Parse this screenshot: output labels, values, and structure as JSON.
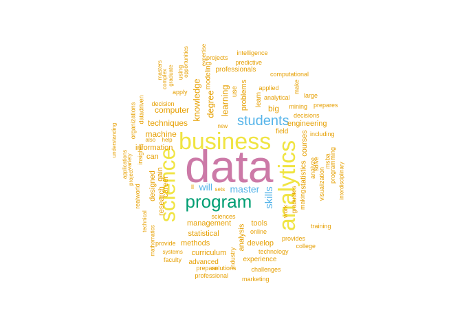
{
  "colors": {
    "orange": "#E69F00",
    "pink": "#CC79A7",
    "yellow": "#F0E442",
    "green": "#009E73",
    "blue": "#56B4E9",
    "background": "#FFFFFF"
  },
  "words": [
    {
      "text": "data",
      "color": "pink"
    },
    {
      "text": "business",
      "color": "yellow"
    },
    {
      "text": "analytics",
      "color": "yellow"
    },
    {
      "text": "science",
      "color": "yellow"
    },
    {
      "text": "program",
      "color": "green"
    },
    {
      "text": "students",
      "color": "blue"
    },
    {
      "text": "will",
      "color": "blue"
    },
    {
      "text": "master",
      "color": "blue"
    },
    {
      "text": "skills",
      "color": "blue"
    },
    {
      "text": "degree",
      "color": "orange"
    },
    {
      "text": "learning",
      "color": "orange"
    },
    {
      "text": "knowledge",
      "color": "orange"
    },
    {
      "text": "computer",
      "color": "orange"
    },
    {
      "text": "techniques",
      "color": "orange"
    },
    {
      "text": "machine",
      "color": "orange"
    },
    {
      "text": "information",
      "color": "orange"
    },
    {
      "text": "can",
      "color": "orange"
    },
    {
      "text": "designed",
      "color": "orange"
    },
    {
      "text": "research",
      "color": "orange"
    },
    {
      "text": "career",
      "color": "orange"
    },
    {
      "text": "gain",
      "color": "orange"
    },
    {
      "text": "management",
      "color": "orange"
    },
    {
      "text": "statistical",
      "color": "orange"
    },
    {
      "text": "methods",
      "color": "orange"
    },
    {
      "text": "curriculum",
      "color": "orange"
    },
    {
      "text": "advanced",
      "color": "orange"
    },
    {
      "text": "analysis",
      "color": "orange"
    },
    {
      "text": "tools",
      "color": "orange"
    },
    {
      "text": "develop",
      "color": "orange"
    },
    {
      "text": "experience",
      "color": "orange"
    },
    {
      "text": "technology",
      "color": "orange"
    },
    {
      "text": "solutions",
      "color": "orange"
    },
    {
      "text": "challenges",
      "color": "orange"
    },
    {
      "text": "marketing",
      "color": "orange"
    },
    {
      "text": "professional",
      "color": "orange"
    },
    {
      "text": "prepare",
      "color": "orange"
    },
    {
      "text": "industry",
      "color": "orange"
    },
    {
      "text": "online",
      "color": "orange"
    },
    {
      "text": "sciences",
      "color": "orange"
    },
    {
      "text": "college",
      "color": "orange"
    },
    {
      "text": "training",
      "color": "orange"
    },
    {
      "text": "provides",
      "color": "orange"
    },
    {
      "text": "statistics",
      "color": "orange"
    },
    {
      "text": "courses",
      "color": "orange"
    },
    {
      "text": "field",
      "color": "orange"
    },
    {
      "text": "engineering",
      "color": "orange"
    },
    {
      "text": "including",
      "color": "orange"
    },
    {
      "text": "decisions",
      "color": "orange"
    },
    {
      "text": "mining",
      "color": "orange"
    },
    {
      "text": "prepares",
      "color": "orange"
    },
    {
      "text": "large",
      "color": "orange"
    },
    {
      "text": "make",
      "color": "orange"
    },
    {
      "text": "analytical",
      "color": "orange"
    },
    {
      "text": "applied",
      "color": "orange"
    },
    {
      "text": "learn",
      "color": "orange"
    },
    {
      "text": "big",
      "color": "orange"
    },
    {
      "text": "problems",
      "color": "orange"
    },
    {
      "text": "use",
      "color": "orange"
    },
    {
      "text": "computational",
      "color": "orange"
    },
    {
      "text": "professionals",
      "color": "orange"
    },
    {
      "text": "predictive",
      "color": "orange"
    },
    {
      "text": "intelligence",
      "color": "orange"
    },
    {
      "text": "projects",
      "color": "orange"
    },
    {
      "text": "expertise",
      "color": "orange"
    },
    {
      "text": "modeling",
      "color": "orange"
    },
    {
      "text": "opportunities",
      "color": "orange"
    },
    {
      "text": "using",
      "color": "orange"
    },
    {
      "text": "graduate",
      "color": "orange"
    },
    {
      "text": "complex",
      "color": "orange"
    },
    {
      "text": "masters",
      "color": "orange"
    },
    {
      "text": "apply",
      "color": "orange"
    },
    {
      "text": "decision",
      "color": "orange"
    },
    {
      "text": "datadriven",
      "color": "orange"
    },
    {
      "text": "organizations",
      "color": "orange"
    },
    {
      "text": "help",
      "color": "orange"
    },
    {
      "text": "also",
      "color": "orange"
    },
    {
      "text": "new",
      "color": "orange"
    },
    {
      "text": "insights",
      "color": "orange"
    },
    {
      "text": "variety",
      "color": "orange"
    },
    {
      "text": "applications",
      "color": "orange"
    },
    {
      "text": "understanding",
      "color": "orange"
    },
    {
      "text": "project",
      "color": "orange"
    },
    {
      "text": "realworld",
      "color": "orange"
    },
    {
      "text": "technical",
      "color": "orange"
    },
    {
      "text": "mathematics",
      "color": "orange"
    },
    {
      "text": "provide",
      "color": "orange"
    },
    {
      "text": "systems",
      "color": "orange"
    },
    {
      "text": "faculty",
      "color": "orange"
    },
    {
      "text": "sets",
      "color": "orange"
    },
    {
      "text": "ll",
      "color": "orange"
    },
    {
      "text": "work",
      "color": "orange"
    },
    {
      "text": "graduates",
      "color": "orange"
    },
    {
      "text": "analyze",
      "color": "orange"
    },
    {
      "text": "making",
      "color": "orange"
    },
    {
      "text": "visualization",
      "color": "orange"
    },
    {
      "text": "solve",
      "color": "orange"
    },
    {
      "text": "msba",
      "color": "orange"
    },
    {
      "text": "programming",
      "color": "orange"
    },
    {
      "text": "interdisciplinary",
      "color": "orange"
    }
  ]
}
